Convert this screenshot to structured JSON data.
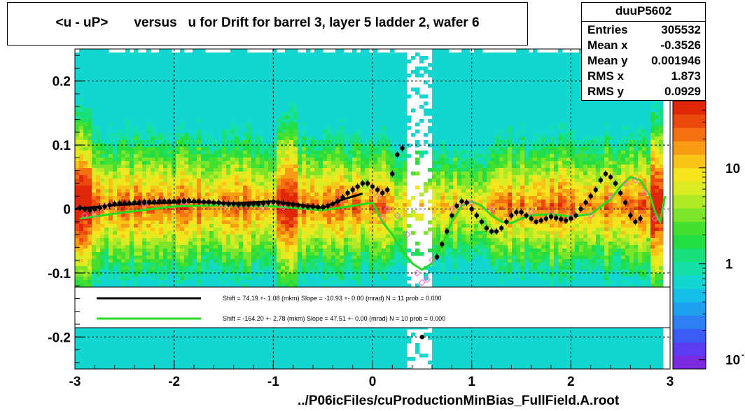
{
  "title": "<u - uP>       versus   u for Drift for barrel 3, layer 5 ladder 2, wafer 6",
  "footer": "../P06icFiles/cuProductionMinBias_FullField.A.root",
  "stats": {
    "name": "duuP5602",
    "rows": [
      {
        "key": "Entries",
        "value": "305532"
      },
      {
        "key": "Mean x",
        "value": "-0.3526"
      },
      {
        "key": "Mean y",
        "value": "0.001946"
      },
      {
        "key": "RMS x",
        "value": "1.873"
      },
      {
        "key": "RMS y",
        "value": "0.0929"
      }
    ]
  },
  "colors": {
    "black_fit": "#000000",
    "green_fit": "#22dd22",
    "open_marker": "#ff66cc"
  },
  "chart_data": {
    "type": "heatmap",
    "xlim": [
      -3,
      3
    ],
    "ylim": [
      -0.25,
      0.25
    ],
    "x_ticks": [
      "-3",
      "-2",
      "-1",
      "0",
      "1",
      "2",
      "3"
    ],
    "y_ticks": [
      {
        "v": 0.2,
        "label": "0.2"
      },
      {
        "v": 0.1,
        "label": "0.1"
      },
      {
        "v": 0,
        "label": "0"
      },
      {
        "v": -0.1,
        "label": "-0.1"
      },
      {
        "v": -0.2,
        "label": "-0.2"
      }
    ],
    "z_ticks": [
      "10",
      "1",
      "10"
    ],
    "z_tick_v": [
      10,
      1,
      0.1
    ],
    "z_tick_exponent": "-1",
    "zlim": [
      0.08,
      50
    ],
    "grid": true,
    "legend": [
      {
        "line_color": "#000000",
        "text": "Shift =    74.19 +- 1.08 (mkm) Slope =   -10.93 +- 0.00 (mrad)  N = 11 prob = 0.000"
      },
      {
        "line_color": "#22dd22",
        "text": "Shift =  -164.20 +- 2.78 (mkm) Slope =    47.51 +- 0.00 (mrad)  N = 10 prob = 0.000"
      }
    ],
    "black_fit_x": [
      -3.0,
      -2.6,
      -2.2,
      -1.8,
      -1.4,
      -1.0,
      -0.8,
      -0.5,
      -0.3,
      -0.1
    ],
    "black_fit_y": [
      0.0,
      0.006,
      0.009,
      0.011,
      0.009,
      0.012,
      0.008,
      0.002,
      0.015,
      0.024
    ],
    "green_fit_x": [
      -2.95,
      -2.5,
      -2.0,
      -1.5,
      -1.0,
      -0.5,
      -0.2,
      0.0,
      0.1,
      0.2,
      0.3,
      0.4,
      0.5,
      0.6,
      0.7,
      0.8,
      0.9,
      1.0,
      1.1,
      1.2,
      1.3,
      1.4,
      1.5,
      1.6,
      1.8,
      2.0,
      2.2,
      2.4,
      2.5,
      2.6,
      2.7,
      2.8,
      2.85,
      2.9,
      2.95
    ],
    "green_fit_y": [
      -0.015,
      -0.005,
      0.004,
      0.006,
      0.004,
      -0.002,
      0.005,
      0.01,
      -0.02,
      -0.04,
      -0.065,
      -0.085,
      -0.095,
      -0.085,
      -0.055,
      -0.02,
      0.005,
      0.012,
      0.005,
      -0.01,
      -0.02,
      -0.022,
      -0.015,
      -0.01,
      -0.008,
      -0.012,
      -0.008,
      0.015,
      0.035,
      0.05,
      0.045,
      0.02,
      -0.005,
      -0.02,
      0.02
    ],
    "profile_x": [
      -2.95,
      -2.9,
      -2.85,
      -2.8,
      -2.75,
      -2.7,
      -2.65,
      -2.6,
      -2.55,
      -2.5,
      -2.45,
      -2.4,
      -2.35,
      -2.3,
      -2.25,
      -2.2,
      -2.15,
      -2.1,
      -2.05,
      -2.0,
      -1.95,
      -1.9,
      -1.85,
      -1.8,
      -1.75,
      -1.7,
      -1.65,
      -1.6,
      -1.55,
      -1.5,
      -1.45,
      -1.4,
      -1.35,
      -1.3,
      -1.25,
      -1.2,
      -1.15,
      -1.1,
      -1.05,
      -1.0,
      -0.95,
      -0.9,
      -0.85,
      -0.8,
      -0.75,
      -0.7,
      -0.65,
      -0.6,
      -0.55,
      -0.5,
      -0.45,
      -0.4,
      -0.35,
      -0.3,
      -0.25,
      -0.2,
      -0.15,
      -0.1,
      -0.05,
      0.0,
      0.05,
      0.1,
      0.15,
      0.2,
      0.25,
      0.3,
      0.65,
      0.7,
      0.75,
      0.8,
      0.85,
      0.9,
      0.95,
      1.0,
      1.05,
      1.1,
      1.15,
      1.2,
      1.25,
      1.3,
      1.35,
      1.4,
      1.45,
      1.5,
      1.55,
      1.6,
      1.65,
      1.7,
      1.75,
      1.8,
      1.85,
      1.9,
      1.95,
      2.0,
      2.05,
      2.1,
      2.15,
      2.2,
      2.25,
      2.3,
      2.35,
      2.4,
      2.45,
      2.5,
      2.55,
      2.6,
      2.65,
      2.7,
      2.75,
      2.8,
      2.85,
      2.9
    ],
    "profile_y": [
      0.002,
      0.0,
      -0.002,
      0.0,
      0.002,
      0.004,
      0.006,
      0.008,
      0.009,
      0.009,
      0.009,
      0.01,
      0.01,
      0.011,
      0.011,
      0.011,
      0.012,
      0.012,
      0.012,
      0.012,
      0.012,
      0.013,
      0.013,
      0.012,
      0.012,
      0.011,
      0.011,
      0.01,
      0.01,
      0.009,
      0.008,
      0.008,
      0.007,
      0.007,
      0.007,
      0.008,
      0.008,
      0.009,
      0.01,
      0.011,
      0.01,
      0.009,
      0.008,
      0.007,
      0.006,
      0.005,
      0.004,
      0.004,
      0.003,
      0.003,
      0.005,
      0.008,
      0.012,
      0.018,
      0.025,
      0.03,
      0.035,
      0.04,
      0.04,
      0.035,
      0.03,
      0.025,
      0.03,
      0.055,
      0.085,
      0.095,
      -0.075,
      -0.055,
      -0.035,
      -0.01,
      0.005,
      0.012,
      0.01,
      0.0,
      -0.01,
      -0.02,
      -0.03,
      -0.035,
      -0.035,
      -0.03,
      -0.02,
      -0.01,
      -0.005,
      -0.005,
      -0.01,
      -0.015,
      -0.02,
      -0.018,
      -0.015,
      -0.012,
      -0.014,
      -0.016,
      -0.018,
      -0.015,
      -0.01,
      0.0,
      0.01,
      0.02,
      0.03,
      0.045,
      0.055,
      0.05,
      0.04,
      0.025,
      0.01,
      -0.01,
      -0.02,
      -0.015
    ],
    "open_x": [
      -2.9,
      -2.8,
      -2.7,
      -2.3,
      -1.9,
      -1.5,
      -1.1,
      -0.9,
      0.05,
      0.1,
      0.15,
      0.25,
      0.35,
      0.45,
      0.5,
      0.55,
      0.6,
      0.8,
      0.9,
      1.0,
      1.2,
      1.4,
      1.6,
      1.8,
      2.0,
      2.2,
      2.4,
      2.55,
      2.65,
      2.75,
      2.85
    ],
    "open_y": [
      -0.01,
      -0.008,
      0.004,
      0.008,
      0.01,
      0.006,
      0.002,
      0.003,
      0.02,
      -0.012,
      0.0,
      -0.01,
      -0.04,
      -0.1,
      -0.115,
      -0.11,
      -0.08,
      0.0,
      0.008,
      0.01,
      0.0,
      -0.01,
      -0.005,
      -0.008,
      -0.012,
      -0.01,
      0.02,
      0.04,
      0.045,
      0.025,
      -0.015
    ],
    "extra_points": [
      {
        "x": 0.5,
        "y": -0.2
      }
    ]
  }
}
